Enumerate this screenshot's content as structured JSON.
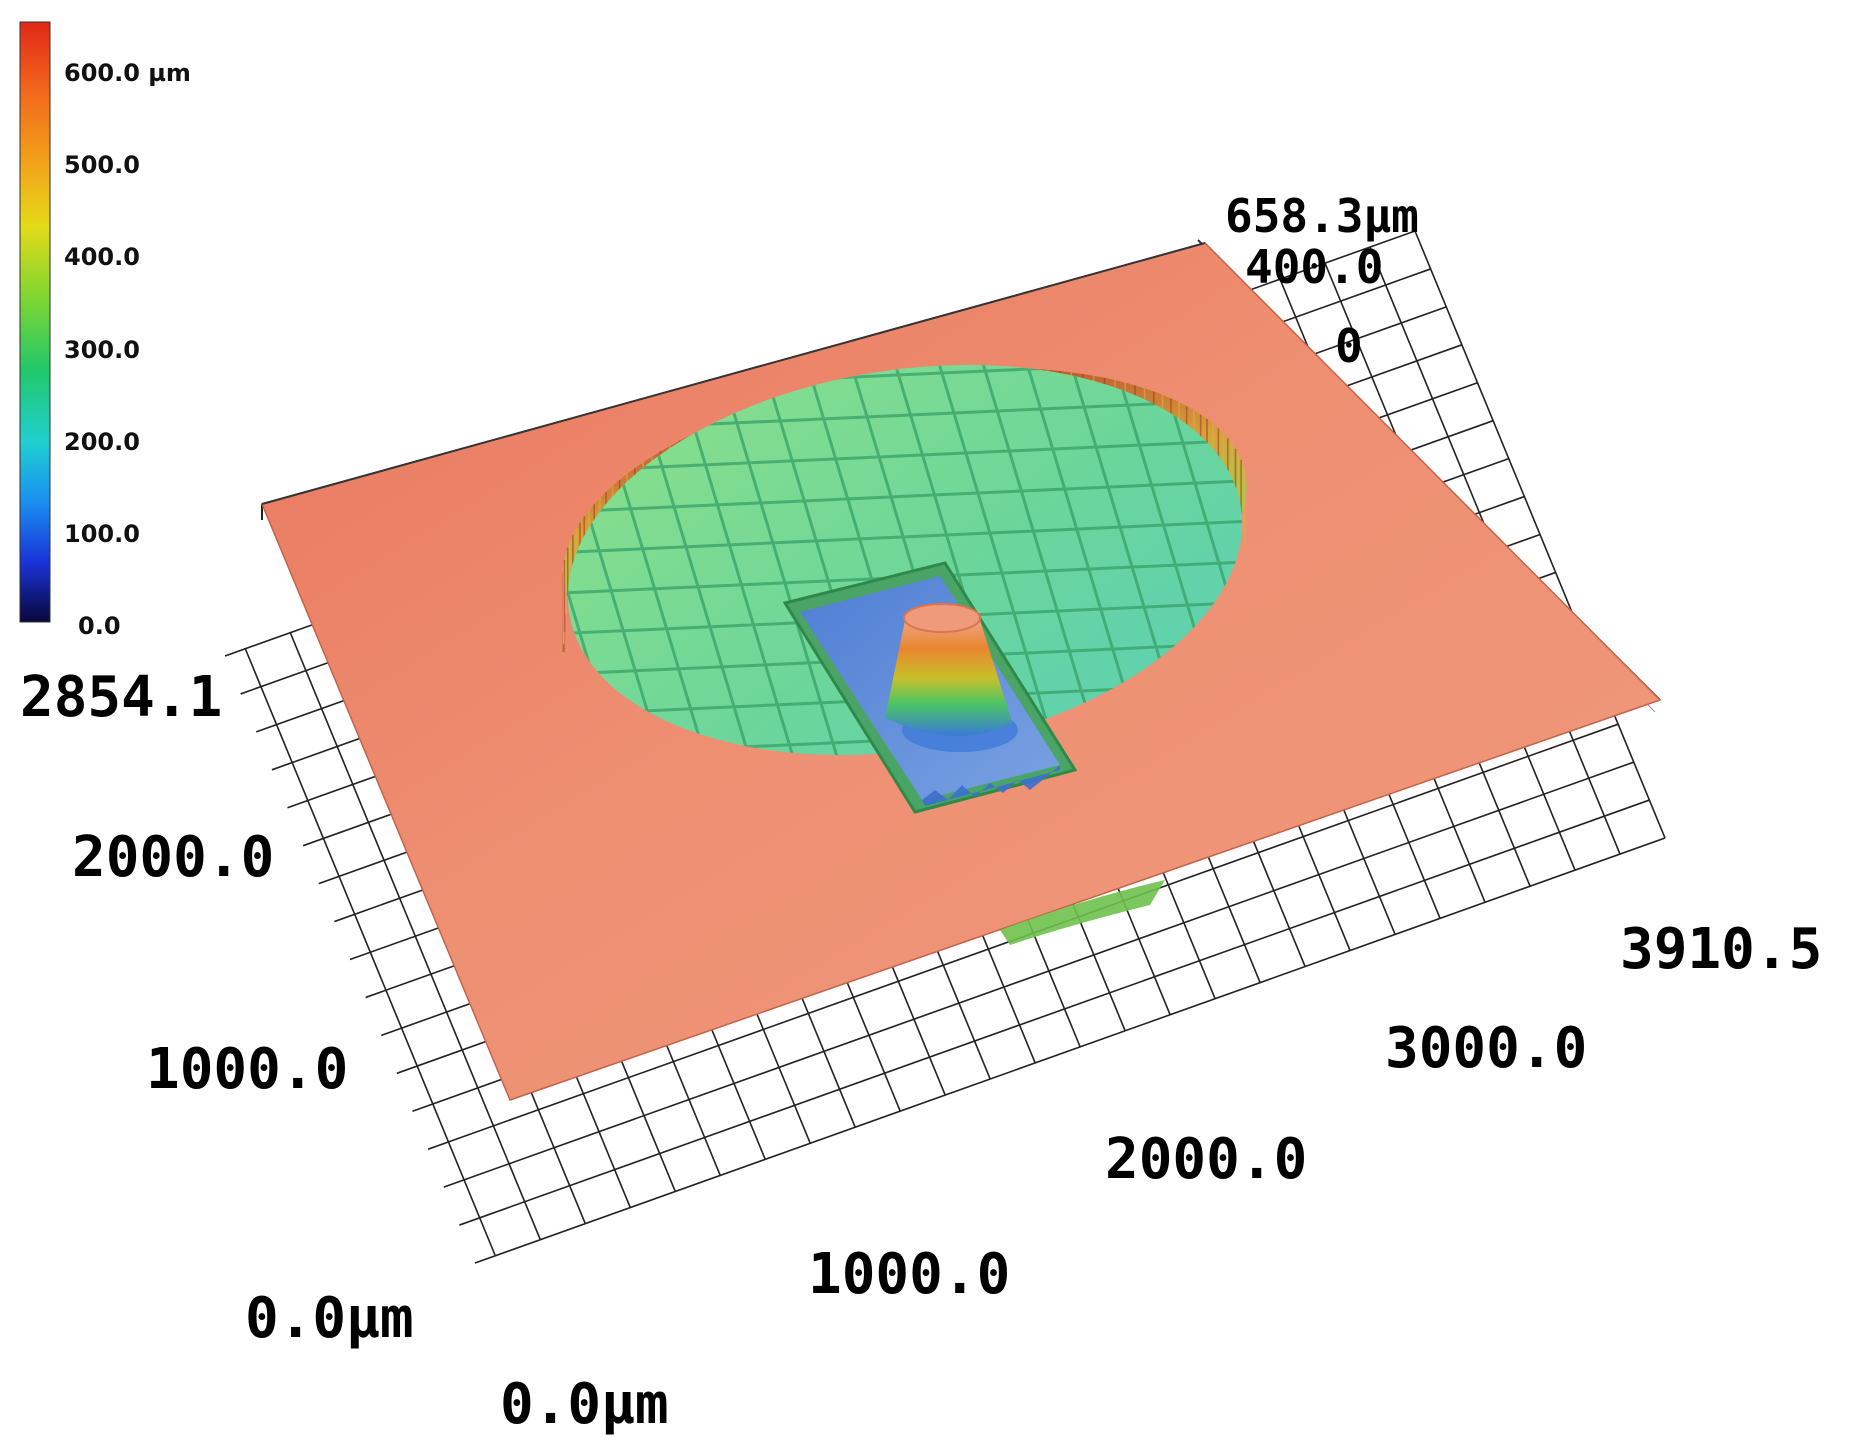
{
  "colorbar": {
    "labels": [
      "600.0 µm",
      "500.0",
      "400.0",
      "300.0",
      "200.0",
      "100.0",
      "0.0"
    ],
    "range_um": [
      0,
      658.3
    ],
    "colors_top_to_bottom": [
      "#e8271a",
      "#f2761c",
      "#f0b819",
      "#d8e419",
      "#6fd63a",
      "#27c86a",
      "#25d0c8",
      "#1d8df0",
      "#1b2cd8",
      "#0a0a5a"
    ]
  },
  "axes": {
    "z_max": "658.3µm",
    "z_mid": "400.0",
    "z_zero": "0",
    "y_max": "2854.1",
    "y_2000": "2000.0",
    "y_1000": "1000.0",
    "y_origin": "0.0µm",
    "x_origin": "0.0µm",
    "x_1000": "1000.0",
    "x_2000": "2000.0",
    "x_3000": "3000.0",
    "x_max": "3910.5"
  },
  "surface": {
    "top_color": "#ec8f74",
    "crater_floor_color": "#6bd58c",
    "pocket_color": "#5f86d8",
    "post_color": "#e88a3a"
  }
}
